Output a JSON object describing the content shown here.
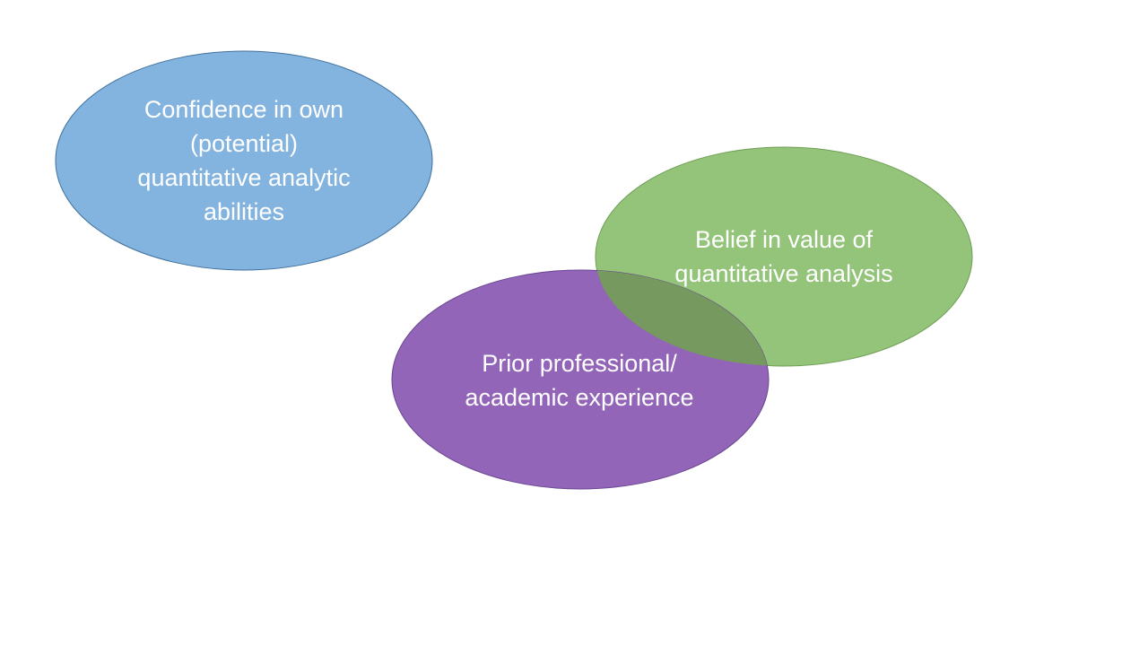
{
  "colors": {
    "background": "#ffffff",
    "blue_fill": "#83b3df",
    "blue_stroke": "#41719c",
    "green_fill": "#93c47a",
    "green_stroke": "#6f9e55",
    "purple_fill": "#9265b8",
    "purple_stroke": "#6a4590",
    "overlap_fill": "#75995e",
    "text": "#ffffff"
  },
  "diagram": {
    "nodes": [
      {
        "id": "confidence",
        "lines": [
          "Confidence in own",
          "(potential)",
          "quantitative analytic",
          "abilities"
        ]
      },
      {
        "id": "belief",
        "lines": [
          "Belief in value of",
          "quantitative analysis"
        ]
      },
      {
        "id": "prior",
        "lines": [
          "Prior professional/",
          "academic experience"
        ]
      }
    ]
  }
}
